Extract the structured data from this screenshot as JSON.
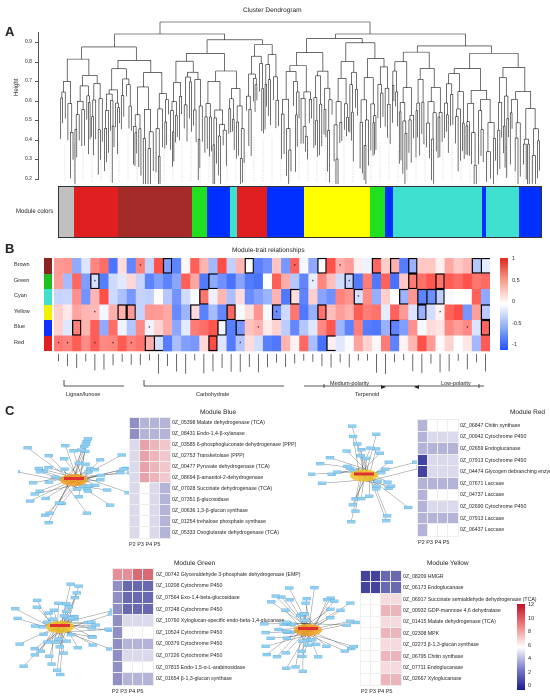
{
  "panels": {
    "a": "A",
    "b": "B",
    "c": "C"
  },
  "dendrogram": {
    "title": "Cluster Dendrogram",
    "ylabel": "Height",
    "yticks": [
      "0.9",
      "0.8",
      "0.7",
      "0.6",
      "0.5",
      "0.4",
      "0.3",
      "0.2"
    ],
    "module_label": "Module colors",
    "module_bar": [
      {
        "color": "#c0c0c0",
        "w": 1
      },
      {
        "color": "#e02020",
        "w": 3
      },
      {
        "color": "#a52a2a",
        "w": 5
      },
      {
        "color": "#20e020",
        "w": 1
      },
      {
        "color": "#0030ff",
        "w": 1.5
      },
      {
        "color": "#40e0d0",
        "w": 0.5
      },
      {
        "color": "#e02020",
        "w": 2
      },
      {
        "color": "#0030ff",
        "w": 2.5
      },
      {
        "color": "#ffff00",
        "w": 4.5
      },
      {
        "color": "#20e020",
        "w": 1
      },
      {
        "color": "#0030ff",
        "w": 0.5
      },
      {
        "color": "#40e0d0",
        "w": 6
      },
      {
        "color": "#0030ff",
        "w": 0.3
      },
      {
        "color": "#40e0d0",
        "w": 2.2
      },
      {
        "color": "#0030ff",
        "w": 1.5
      }
    ]
  },
  "trait": {
    "title": "Module-trait relationships",
    "modules": [
      "Brown",
      "Green",
      "Cyan",
      "Yellow",
      "Blue",
      "Red"
    ],
    "module_colors": [
      "#8b2323",
      "#20c020",
      "#40e0d0",
      "#f0f000",
      "#1030ff",
      "#e02020"
    ],
    "scale_ticks": [
      "1",
      "0.5",
      "0",
      "-0.5",
      "-1"
    ],
    "groups": [
      "Lignan/lunose",
      "Carbohydrate",
      "Medium-polarity",
      "Low-polarity",
      "Terpenoid"
    ]
  },
  "modules": {
    "blue": {
      "title": "Module Blue",
      "xlabels": "P2 P3 P4 P5",
      "genes": [
        "0Z_05398 Malate dehydrogenase (TCA)",
        "0Z_08431 Endo-1,4-β-xylanase",
        "0Z_03585 6-phosphogluconate dehydrogenase (PPP)",
        "0Z_02753 Transketolase (PPP)",
        "0Z_00477 Pyruvate dehydrogenase (TCA)",
        "0Z_08694 β-amanitol-2-dehydrogenase",
        "0Z_07028 Succinate dehydrogenase (TCA)",
        "0Z_07351 β-glucosidase",
        "0Z_00636 1,3-β-glucan synthase",
        "0Z_01254 trehalose phosphate synthase",
        "0Z_05333 Oxoglutarate dehydrogenase (TCA)"
      ]
    },
    "red": {
      "title": "Module Red",
      "xlabels": "P2 P3 P4 P5",
      "genes": [
        "0Z_06847 Chitin synthase",
        "0Z_00942 Cytochrome P450",
        "0Z_02659 Endoglucanase",
        "0Z_07913 Cytochrome P450",
        "0Z_04474 Glycogen debranching enzyme",
        "0Z_07671 Laccase",
        "0Z_04737 Laccase",
        "0Z_02690 Cytochrome P450",
        "0Z_07913 Laccase",
        "0Z_06437 Laccase"
      ]
    },
    "green": {
      "title": "Module Green",
      "xlabels": "P2 P3 P4 P5",
      "genes": [
        "0Z_00742 Glyceraldehyde 3-phosphate dehydrogenase (EMP)",
        "0Z_10208 Cytochrome P450",
        "0Z_07564 Exo-1,4-beta-glucosidase",
        "0Z_07248 Cytochrome P450",
        "0Z_10760 Xyloglucan-specific endo-beta-1,4-glucanase",
        "0Z_10524 Cytochrome P450",
        "0Z_00379 Cytochrome P450",
        "0Z_07226 Cytochrome P450",
        "0Z_07815 Endo-1,5-α-L-arabinosidase",
        "0Z_01654 β-1,3-glucan synthase"
      ]
    },
    "yellow": {
      "title": "Module Yellow",
      "xlabels": "P2 P3 P4 P5",
      "genes": [
        "0Z_08209 HMGR",
        "0Z_06173 Endoglucanase",
        "0Z_06917 Succinate semialdehyde dehydrogenase (TCA)",
        "0Z_00932 GDP-mannose 4,6 dehydratase",
        "0Z_01415 Malate dehydrogenase (TCA)",
        "0Z_02308 MPK",
        "0Z_02273 β-1,3-glucan synthase",
        "0Z_06795 Chitin synthase",
        "0Z_07711 Endoglucanase",
        "0Z_02667 Xyloglucanase"
      ]
    },
    "colorbar_ticks": [
      "12",
      "10",
      "8",
      "6",
      "4",
      "2",
      "0"
    ]
  }
}
